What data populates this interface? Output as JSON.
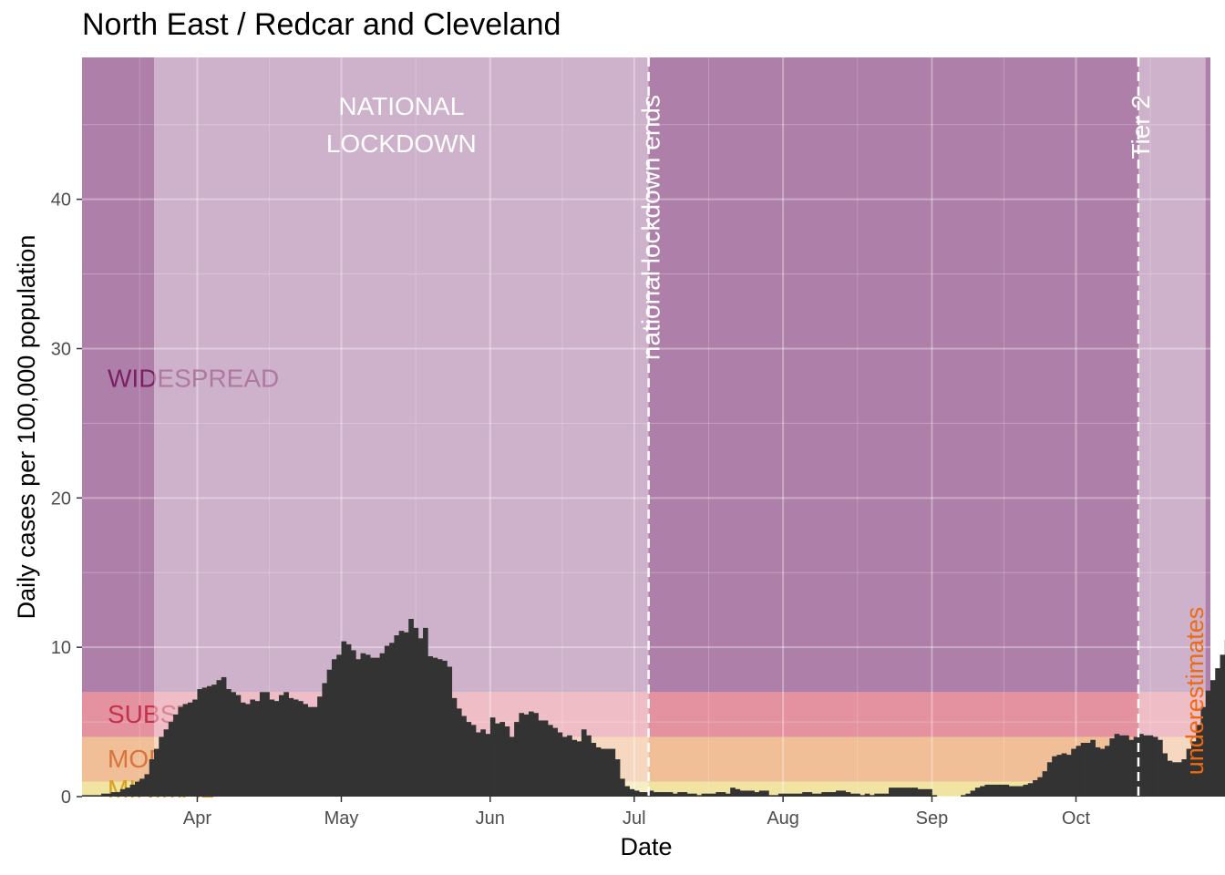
{
  "chart_data": {
    "type": "bar",
    "title": "North East / Redcar and Cleveland",
    "xlabel": "Date",
    "ylabel": "Daily cases per 100,000 population",
    "x_start": "2020-03-08",
    "x_end": "2020-10-28",
    "ylim": [
      0,
      49.5
    ],
    "yticks": [
      0,
      10,
      20,
      30,
      40
    ],
    "xticks": [
      {
        "date": "2020-04-01",
        "label": "Apr"
      },
      {
        "date": "2020-05-01",
        "label": "May"
      },
      {
        "date": "2020-06-01",
        "label": "Jun"
      },
      {
        "date": "2020-07-01",
        "label": "Jul"
      },
      {
        "date": "2020-08-01",
        "label": "Aug"
      },
      {
        "date": "2020-09-01",
        "label": "Sep"
      },
      {
        "date": "2020-10-01",
        "label": "Oct"
      }
    ],
    "grid": true,
    "bar_color": "#333333",
    "bands": [
      {
        "label": "WIDESPREAD",
        "from": 7,
        "to": 49.5,
        "color": "#8e4585"
      },
      {
        "label": "SUBSTANTIAL",
        "from": 4,
        "to": 7,
        "color": "#e06377"
      },
      {
        "label": "MODERATE",
        "from": 1,
        "to": 4,
        "color": "#f3a66a"
      },
      {
        "label": "MINIMAL",
        "from": 0,
        "to": 1,
        "color": "#f5df7a"
      }
    ],
    "shaded_periods": [
      {
        "label": "NATIONAL\nLOCKDOWN",
        "from": "2020-03-23",
        "to": "2020-07-04",
        "color": "#ffffff"
      },
      {
        "label": "",
        "from": "2020-10-14",
        "to": "2020-10-28",
        "color": "#ffffff"
      }
    ],
    "vlines": [
      {
        "date": "2020-07-04",
        "label": "national lockdown ends"
      },
      {
        "date": "2020-10-14",
        "label": "Tier 2"
      }
    ],
    "underestimates_label": "underestimates",
    "underestimates_color": "#ee6a10",
    "series": [
      {
        "dates_from": "2020-03-08",
        "values": [
          0.1,
          0.1,
          0.1,
          0.1,
          0.2,
          0.2,
          0.3,
          0.3,
          0.5,
          0.6,
          0.8,
          1.0,
          1.2,
          1.5,
          2.5,
          3.2,
          4.0,
          4.5,
          5.0,
          5.5,
          6.0,
          6.2,
          6.3,
          6.5,
          7.2,
          7.3,
          7.4,
          7.5,
          7.8,
          8.0,
          7.2,
          7.0,
          6.8,
          6.3,
          6.2,
          6.5,
          6.4,
          7.0,
          7.0,
          6.5,
          6.4,
          6.8,
          7.0,
          6.6,
          6.5,
          6.4,
          6.2,
          6.0,
          6.0,
          6.7,
          7.6,
          8.5,
          9.2,
          9.5,
          10.4,
          10.2,
          9.8,
          9.2,
          9.6,
          9.5,
          9.3,
          9.3,
          9.6,
          10.1,
          10.3,
          10.8,
          11.1,
          11.0,
          11.9,
          11.3,
          10.6,
          11.3,
          9.4,
          9.3,
          9.2,
          9.1,
          8.7,
          6.6,
          5.9,
          5.4,
          5.0,
          4.8,
          4.3,
          4.5,
          4.2,
          5.3,
          4.9,
          5.0,
          4.7,
          4.0,
          5.0,
          5.6,
          5.5,
          5.7,
          5.6,
          5.1,
          5.1,
          4.8,
          4.6,
          4.3,
          4.0,
          4.1,
          3.8,
          3.7,
          4.5,
          4.1,
          3.6,
          3.3,
          3.2,
          3.2,
          3.2,
          2.5,
          1.2,
          0.7,
          0.5,
          0.4,
          0.3,
          0.3,
          0.4,
          0.3,
          0.3,
          0.3,
          0.3,
          0.2,
          0.3,
          0.3,
          0.2,
          0.2,
          0.1,
          0.2,
          0.2,
          0.2,
          0.3,
          0.3,
          0.2,
          0.6,
          0.5,
          0.4,
          0.4,
          0.4,
          0.3,
          0.4,
          0.4,
          0.1,
          0.1,
          0.2,
          0.2,
          0.2,
          0.2,
          0.2,
          0.3,
          0.3,
          0.2,
          0.2,
          0.3,
          0.3,
          0.3,
          0.4,
          0.4,
          0.3,
          0.2,
          0.2,
          0.1,
          0.2,
          0.1,
          0.2,
          0.2,
          0.2,
          0.6,
          0.6,
          0.6,
          0.6,
          0.6,
          0.6,
          0.5,
          0.5,
          0.5,
          0.1,
          0.0,
          0.0,
          0.0,
          0.0,
          0.0,
          0.1,
          0.2,
          0.4,
          0.6,
          0.7,
          0.8,
          0.8,
          0.8,
          0.8,
          0.8,
          0.7,
          0.7,
          0.7,
          0.8,
          0.9,
          1.1,
          1.3,
          1.7,
          2.3,
          2.7,
          2.8,
          2.9,
          2.8,
          3.2,
          3.4,
          3.6,
          3.6,
          3.8,
          3.3,
          3.2,
          3.4,
          3.9,
          4.2,
          4.1,
          4.1,
          3.8,
          4.0,
          4.2,
          4.1,
          4.1,
          4.0,
          3.8,
          2.9,
          2.4,
          2.3,
          2.3,
          2.5,
          3.2,
          3.7,
          4.8,
          6.0,
          7.1,
          7.8,
          8.6,
          9.5,
          10.5,
          11.0,
          12.5,
          14.0,
          15.8,
          17.8,
          20.3,
          22.0,
          24.0,
          26.0,
          28.0,
          30.0,
          31.1,
          31.3,
          31.0,
          30.1,
          30.1,
          30.7,
          30.2,
          32.4,
          34.6,
          36.6,
          38.9,
          39.0,
          42.0,
          45.5,
          49.5,
          48.5,
          45.0,
          46.7,
          45.0,
          47.0,
          43.0,
          39.5,
          37.0,
          33.5,
          27.5,
          24.8,
          22.0,
          21.5
        ]
      }
    ]
  }
}
